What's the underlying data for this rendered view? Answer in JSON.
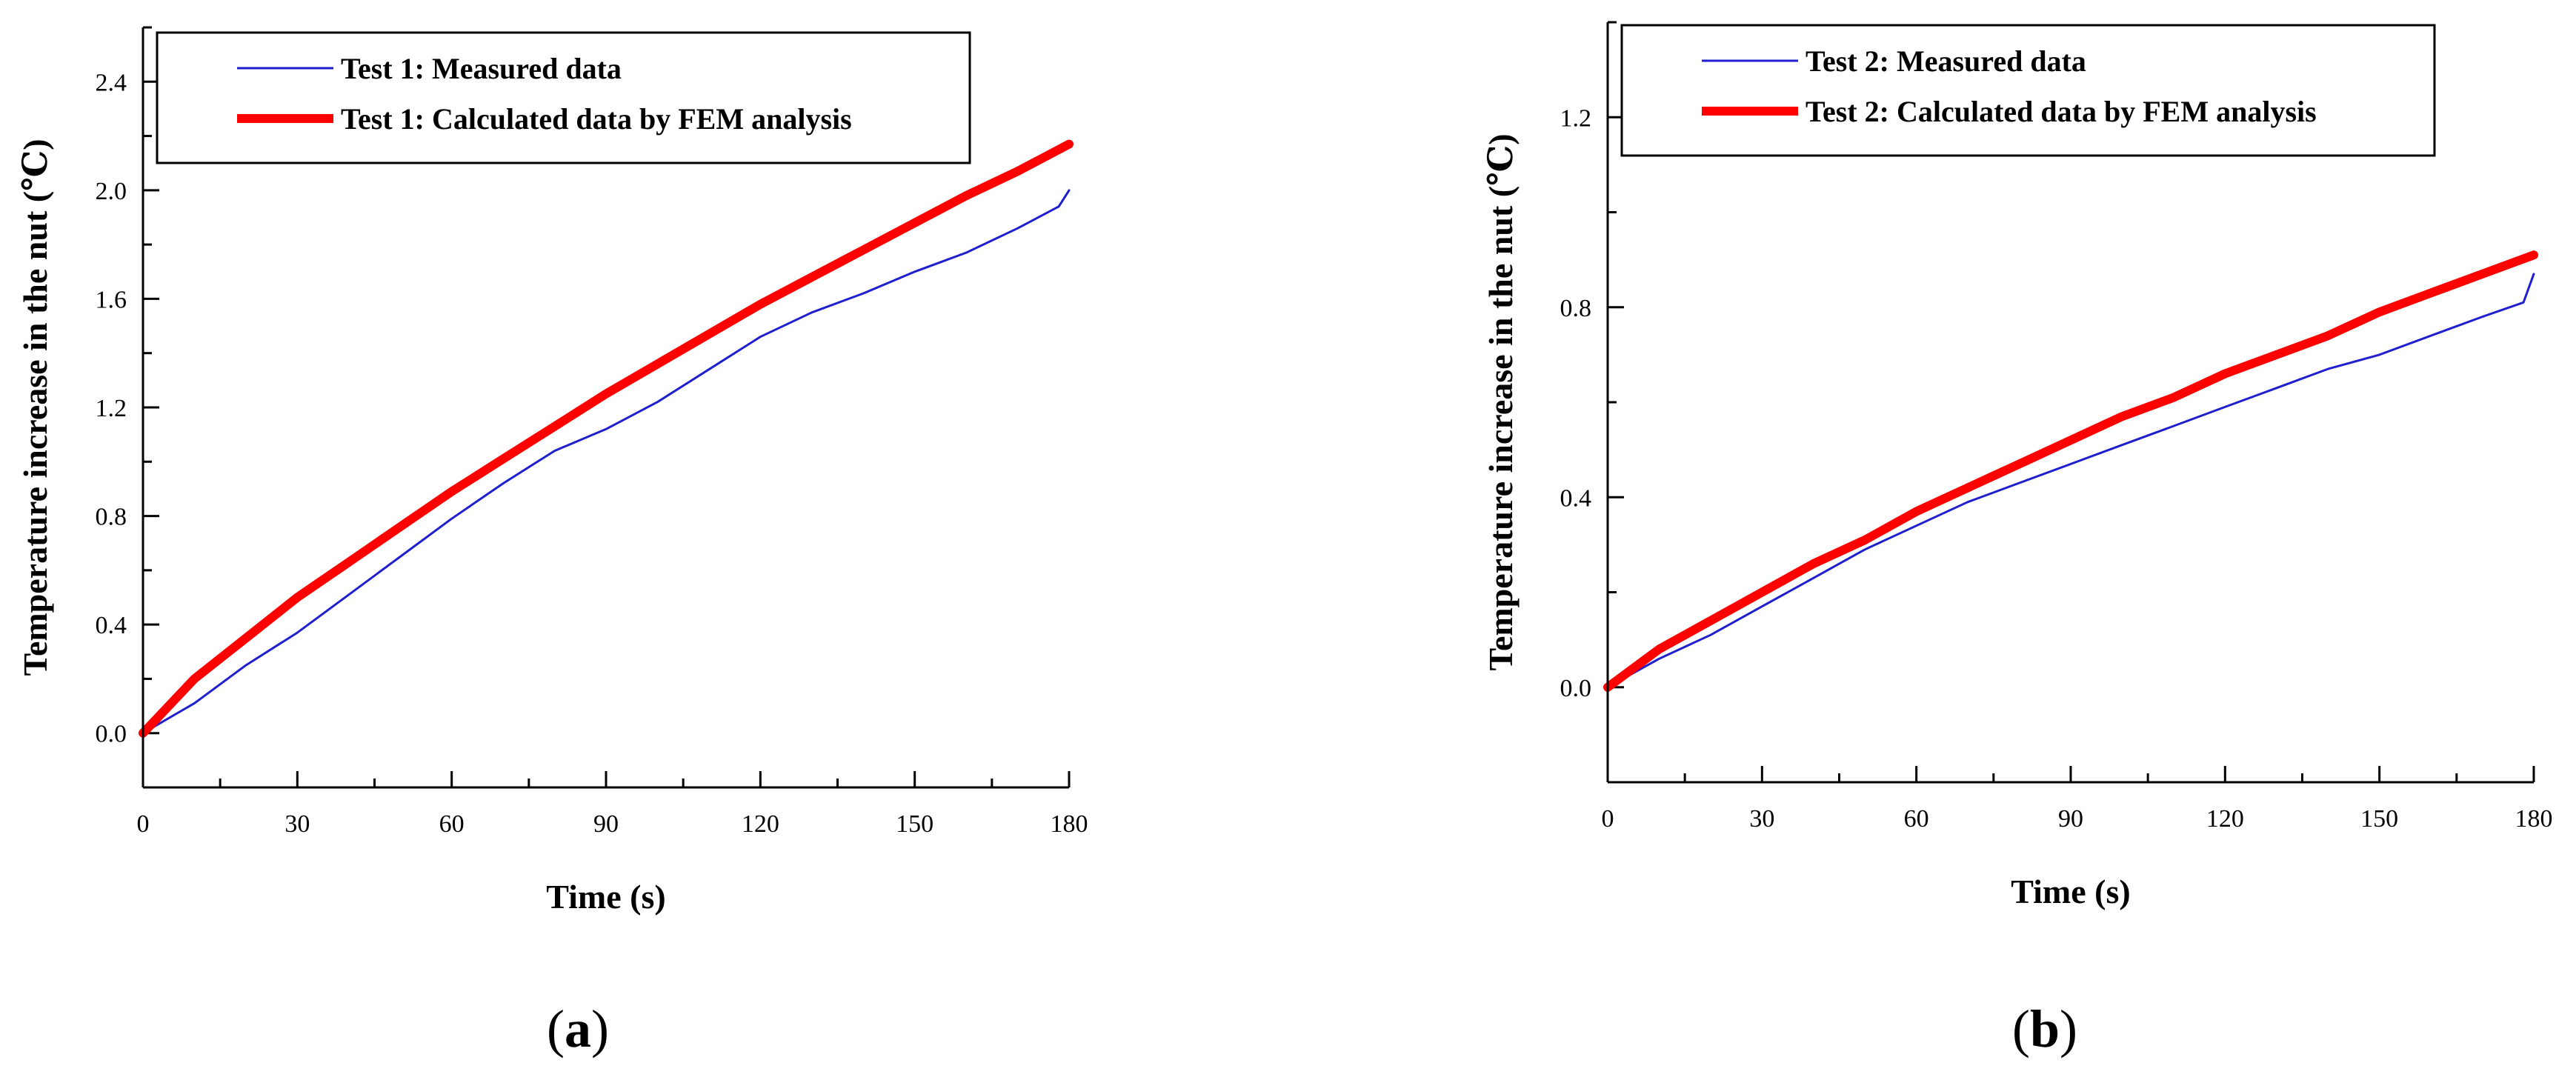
{
  "chart_data": [
    {
      "type": "line",
      "panel_label": "a",
      "xlabel": "Time (s)",
      "ylabel": "Temperature increase in the nut  (℃)",
      "xlim": [
        0,
        180
      ],
      "ylim": [
        -0.2,
        2.6
      ],
      "xticks": [
        0,
        30,
        60,
        90,
        120,
        150,
        180
      ],
      "yticks": [
        0.0,
        0.4,
        0.8,
        1.2,
        1.6,
        2.0,
        2.4
      ],
      "xtick_labels": [
        "0",
        "30",
        "60",
        "90",
        "120",
        "150",
        "180"
      ],
      "ytick_labels": [
        "0.0",
        "0.4",
        "0.8",
        "1.2",
        "1.6",
        "2.0",
        "2.4"
      ],
      "legend_position": "top-left",
      "series": [
        {
          "name": "Test 1: Measured data",
          "color": "#1f1fd0",
          "x": [
            0,
            10,
            20,
            30,
            40,
            50,
            60,
            70,
            80,
            90,
            100,
            110,
            120,
            130,
            140,
            150,
            160,
            170,
            178,
            180
          ],
          "y": [
            0.0,
            0.11,
            0.25,
            0.37,
            0.51,
            0.65,
            0.79,
            0.92,
            1.04,
            1.12,
            1.22,
            1.34,
            1.46,
            1.55,
            1.62,
            1.7,
            1.77,
            1.86,
            1.94,
            2.0
          ]
        },
        {
          "name": "Test 1: Calculated data by FEM analysis",
          "color": "#ff0000",
          "x": [
            0,
            10,
            20,
            30,
            40,
            50,
            60,
            70,
            80,
            90,
            100,
            110,
            120,
            130,
            140,
            150,
            160,
            170,
            180
          ],
          "y": [
            0.0,
            0.2,
            0.35,
            0.5,
            0.63,
            0.76,
            0.89,
            1.01,
            1.13,
            1.25,
            1.36,
            1.47,
            1.58,
            1.68,
            1.78,
            1.88,
            1.98,
            2.07,
            2.17
          ]
        }
      ]
    },
    {
      "type": "line",
      "panel_label": "b",
      "xlabel": "Time (s)",
      "ylabel": "Temperature increase in the nut  (℃)",
      "xlim": [
        0,
        180
      ],
      "ylim": [
        -0.2,
        1.4
      ],
      "xticks": [
        0,
        30,
        60,
        90,
        120,
        150,
        180
      ],
      "yticks": [
        0.0,
        0.4,
        0.8,
        1.2
      ],
      "xtick_labels": [
        "0",
        "30",
        "60",
        "90",
        "120",
        "150",
        "180"
      ],
      "ytick_labels": [
        "0.0",
        "0.4",
        "0.8",
        "1.2"
      ],
      "legend_position": "top-left",
      "series": [
        {
          "name": "Test 2: Measured data",
          "color": "#1f1fd0",
          "x": [
            0,
            10,
            20,
            30,
            40,
            50,
            60,
            70,
            80,
            90,
            100,
            110,
            120,
            130,
            140,
            150,
            160,
            170,
            178,
            180
          ],
          "y": [
            0.0,
            0.06,
            0.11,
            0.17,
            0.23,
            0.29,
            0.34,
            0.39,
            0.43,
            0.47,
            0.51,
            0.55,
            0.59,
            0.63,
            0.67,
            0.7,
            0.74,
            0.78,
            0.81,
            0.87
          ]
        },
        {
          "name": "Test 2: Calculated data by FEM analysis",
          "color": "#ff0000",
          "x": [
            0,
            10,
            20,
            30,
            40,
            50,
            60,
            70,
            80,
            90,
            100,
            110,
            120,
            130,
            140,
            150,
            160,
            170,
            180
          ],
          "y": [
            0.0,
            0.08,
            0.14,
            0.2,
            0.26,
            0.31,
            0.37,
            0.42,
            0.47,
            0.52,
            0.57,
            0.61,
            0.66,
            0.7,
            0.74,
            0.79,
            0.83,
            0.87,
            0.91
          ]
        }
      ]
    }
  ]
}
